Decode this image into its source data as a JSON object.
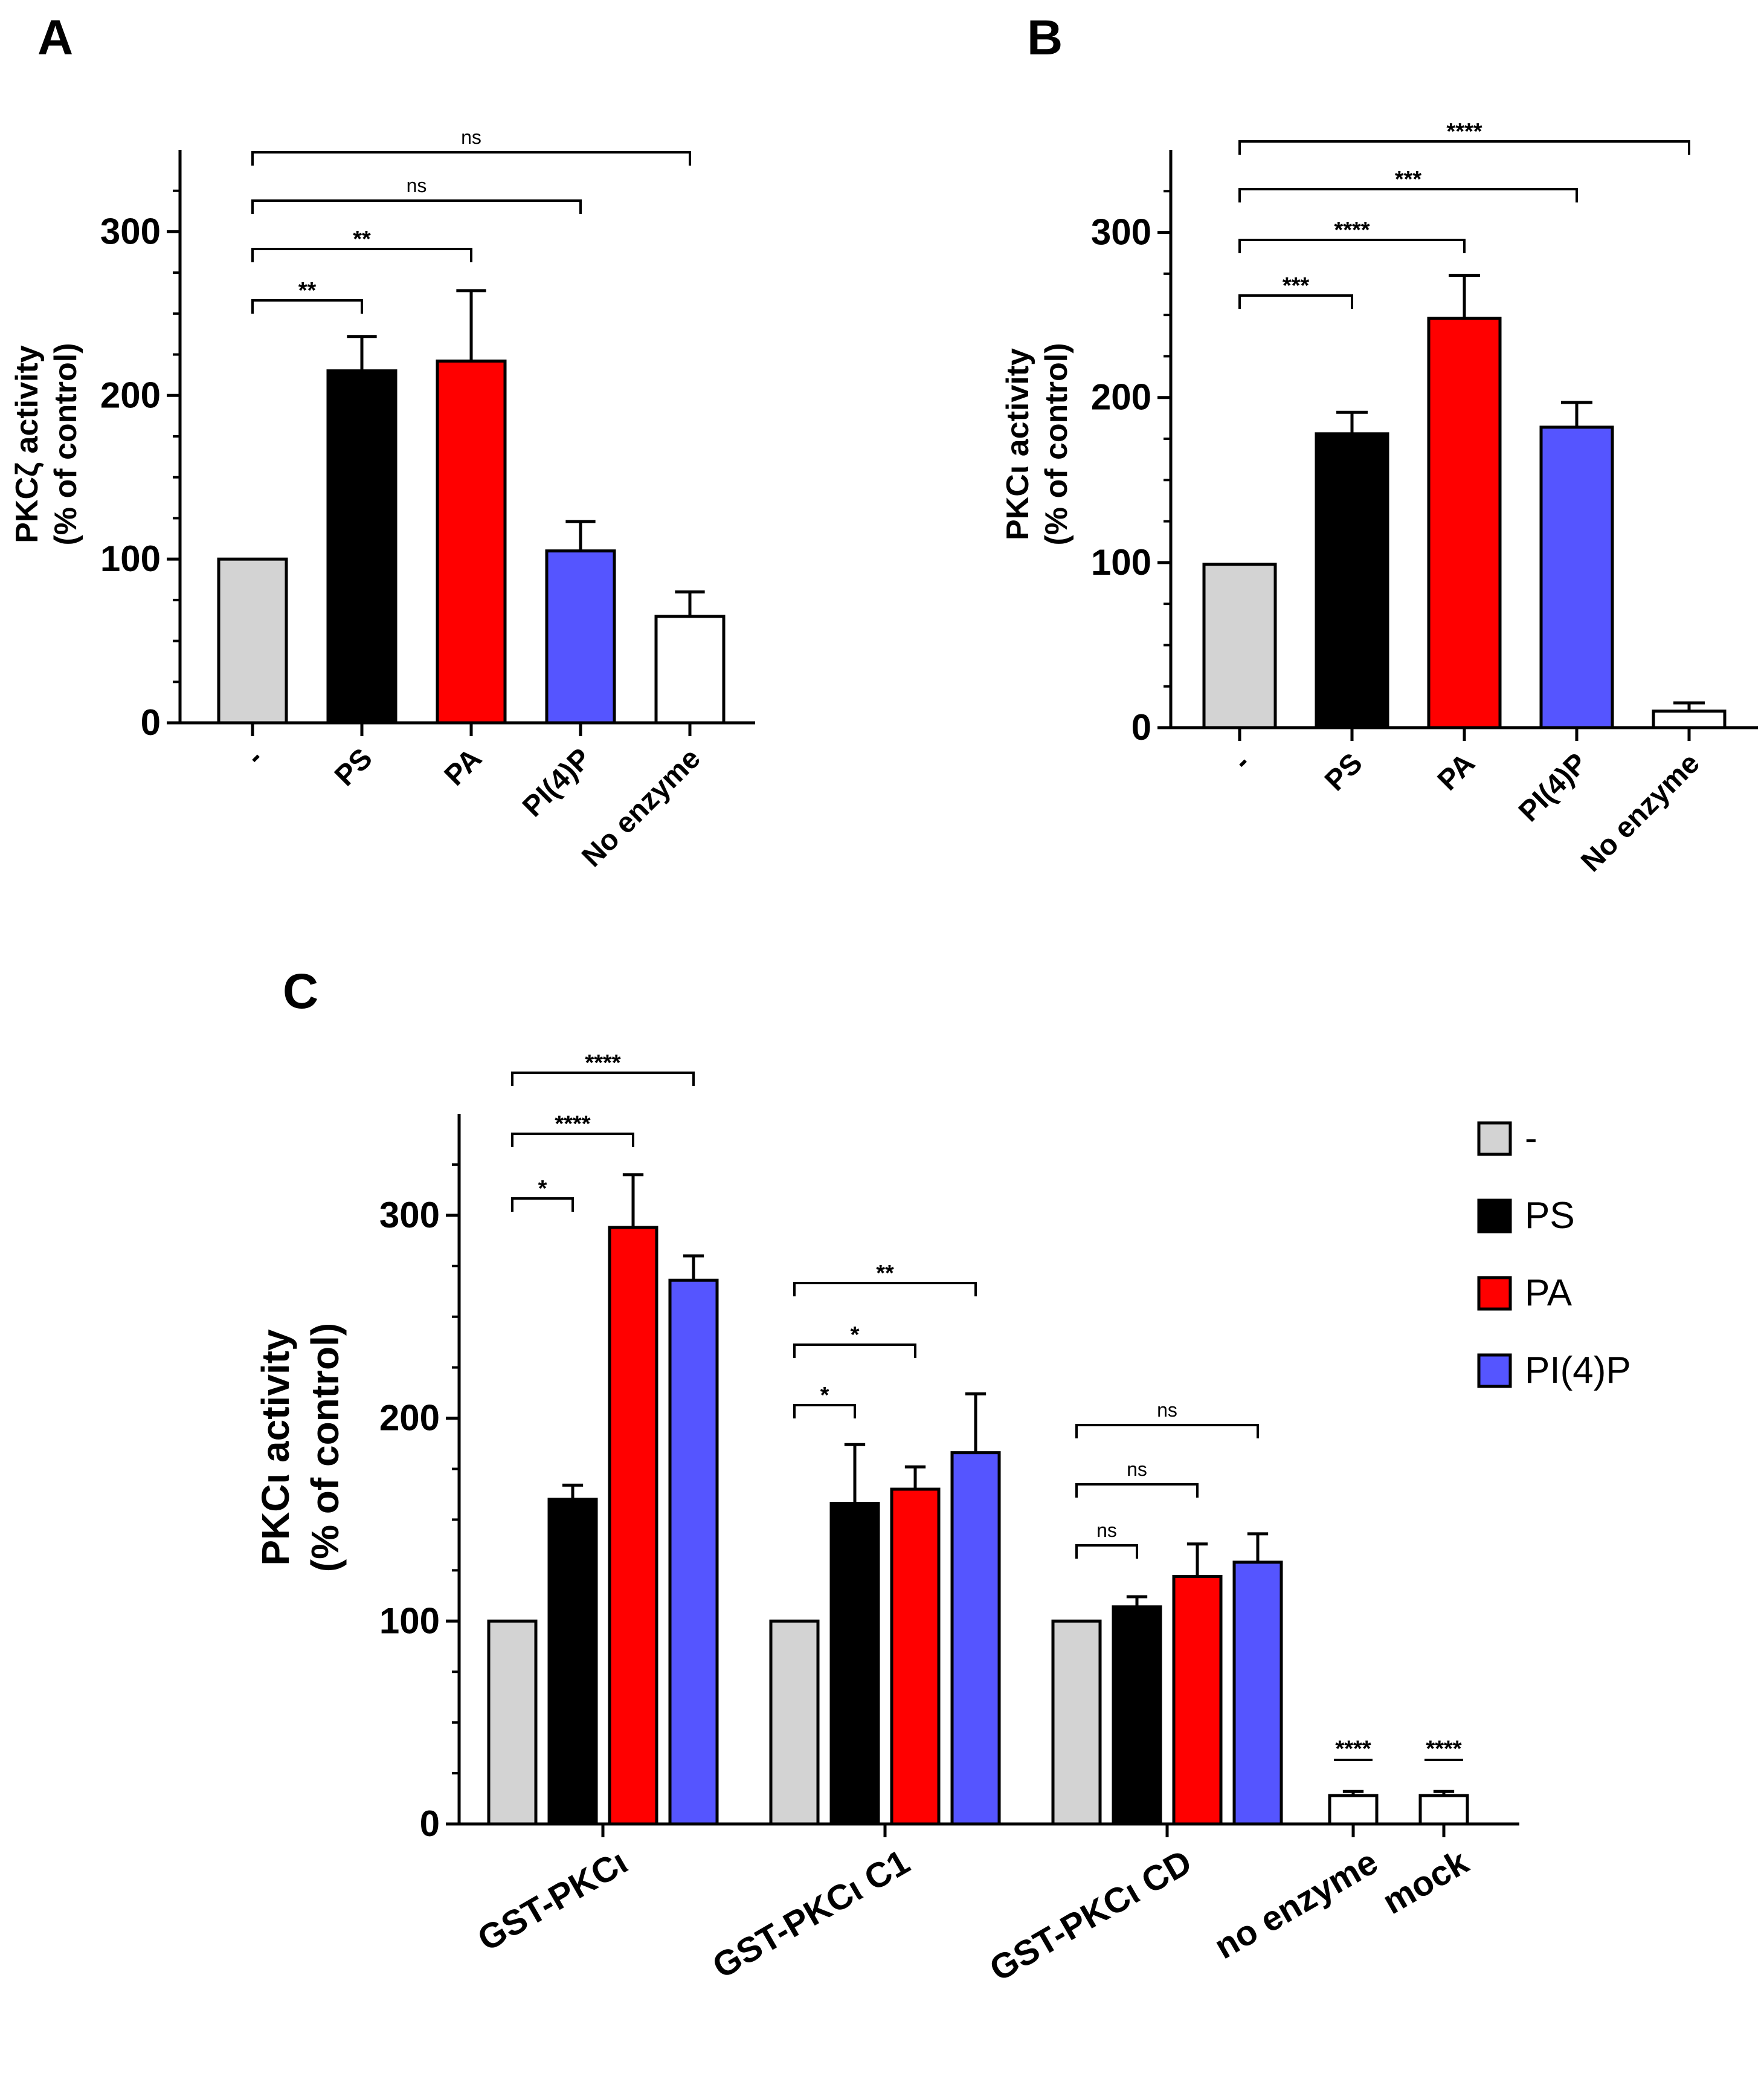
{
  "colors": {
    "control": "#d3d3d3",
    "PS": "#000000",
    "PA": "#ff0000",
    "PI4P": "#5555ff",
    "none": "#ffffff"
  },
  "chart_data": [
    {
      "panel": "A",
      "type": "bar",
      "ylabel_line1": "PKCζ activity",
      "ylabel_line2": "(% of control)",
      "ylim": [
        0,
        350
      ],
      "yticks": [
        "0",
        "100",
        "200",
        "300"
      ],
      "categories": [
        "-",
        "PS",
        "PA",
        "PI(4)P",
        "No enzyme"
      ],
      "values": [
        100,
        215,
        221,
        105,
        65
      ],
      "errors": [
        0,
        21,
        43,
        18,
        15
      ],
      "bar_colors": [
        "control",
        "PS",
        "PA",
        "PI4P",
        "none"
      ],
      "comparisons": [
        {
          "from": 0,
          "to": 1,
          "label": "**"
        },
        {
          "from": 0,
          "to": 2,
          "label": "**"
        },
        {
          "from": 0,
          "to": 3,
          "label": "ns"
        },
        {
          "from": 0,
          "to": 4,
          "label": "ns"
        }
      ]
    },
    {
      "panel": "B",
      "type": "bar",
      "ylabel_line1": "PKCι activity",
      "ylabel_line2": "(% of control)",
      "ylim": [
        0,
        350
      ],
      "yticks": [
        "0",
        "100",
        "200",
        "300"
      ],
      "categories": [
        "-",
        "PS",
        "PA",
        "PI(4)P",
        "No enzyme"
      ],
      "values": [
        99,
        178,
        248,
        182,
        10
      ],
      "errors": [
        0,
        13,
        26,
        15,
        5
      ],
      "bar_colors": [
        "control",
        "PS",
        "PA",
        "PI4P",
        "none"
      ],
      "comparisons": [
        {
          "from": 0,
          "to": 1,
          "label": "***"
        },
        {
          "from": 0,
          "to": 2,
          "label": "****"
        },
        {
          "from": 0,
          "to": 3,
          "label": "***"
        },
        {
          "from": 0,
          "to": 4,
          "label": "****"
        }
      ]
    },
    {
      "panel": "C",
      "type": "grouped-bar",
      "ylabel_line1": "PKCι activity",
      "ylabel_line2": "(% of control)",
      "ylim": [
        0,
        350
      ],
      "yticks": [
        "0",
        "100",
        "200",
        "300"
      ],
      "legend": [
        "-",
        "PS",
        "PA",
        "PI(4)P"
      ],
      "groups": [
        {
          "label": "GST-PKCι",
          "values": [
            100,
            160,
            294,
            268
          ],
          "errors": [
            0,
            7,
            26,
            12
          ],
          "colors": [
            "control",
            "PS",
            "PA",
            "PI4P"
          ],
          "comparisons": [
            {
              "from": 0,
              "to": 1,
              "label": "*"
            },
            {
              "from": 0,
              "to": 2,
              "label": "****"
            },
            {
              "from": 0,
              "to": 3,
              "label": "****"
            }
          ]
        },
        {
          "label": "GST-PKCι C1",
          "values": [
            100,
            158,
            165,
            183
          ],
          "errors": [
            0,
            29,
            11,
            29
          ],
          "colors": [
            "control",
            "PS",
            "PA",
            "PI4P"
          ],
          "comparisons": [
            {
              "from": 0,
              "to": 1,
              "label": "*"
            },
            {
              "from": 0,
              "to": 2,
              "label": "*"
            },
            {
              "from": 0,
              "to": 3,
              "label": "**"
            }
          ]
        },
        {
          "label": "GST-PKCι CD",
          "values": [
            100,
            107,
            122,
            129
          ],
          "errors": [
            0,
            5,
            16,
            14
          ],
          "colors": [
            "control",
            "PS",
            "PA",
            "PI4P"
          ],
          "comparisons": [
            {
              "from": 0,
              "to": 1,
              "label": "ns"
            },
            {
              "from": 0,
              "to": 2,
              "label": "ns"
            },
            {
              "from": 0,
              "to": 3,
              "label": "ns"
            }
          ]
        },
        {
          "label": "no enzyme",
          "values": [
            14
          ],
          "errors": [
            2
          ],
          "colors": [
            "none"
          ],
          "marks": [
            {
              "bar": 0,
              "label": "****"
            }
          ]
        },
        {
          "label": "mock",
          "values": [
            14
          ],
          "errors": [
            2
          ],
          "colors": [
            "none"
          ],
          "marks": [
            {
              "bar": 0,
              "label": "****"
            }
          ]
        }
      ]
    }
  ]
}
